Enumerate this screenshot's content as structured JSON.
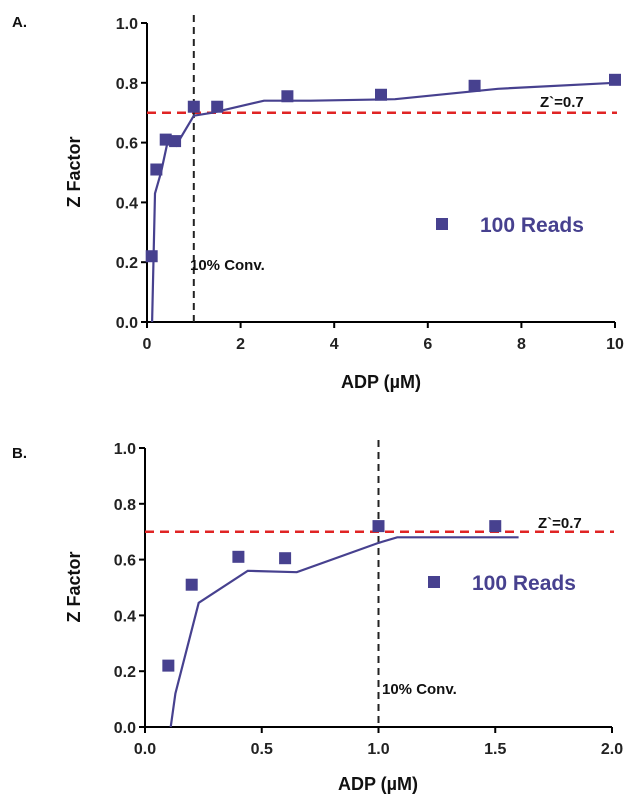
{
  "colors": {
    "series": "#47418f",
    "threshold": "#e02424",
    "vline": "#222222",
    "axis": "#000000"
  },
  "chart_data": [
    {
      "type": "scatter",
      "panel_label": "A.",
      "xlabel": "ADP (µM)",
      "ylabel": "Z Factor",
      "xlim": [
        0,
        10
      ],
      "ylim": [
        0,
        1.0
      ],
      "xticks": [
        "0",
        "2",
        "4",
        "6",
        "8",
        "10"
      ],
      "yticks": [
        "0.0",
        "0.2",
        "0.4",
        "0.6",
        "0.8",
        "1.0"
      ],
      "series": [
        {
          "name": "100 Reads",
          "points": {
            "x": [
              0.1,
              0.2,
              0.4,
              0.6,
              1.0,
              1.5,
              3.0,
              5.0,
              7.0,
              10.0
            ],
            "y": [
              0.22,
              0.51,
              0.61,
              0.605,
              0.72,
              0.72,
              0.755,
              0.76,
              0.79,
              0.81
            ]
          },
          "fit": {
            "x": [
              0.11,
              0.17,
              0.3,
              0.45,
              0.62,
              1.0,
              1.4,
              2.5,
              3.5,
              5.3,
              7.5,
              10.0
            ],
            "y": [
              0.0,
              0.43,
              0.5,
              0.61,
              0.59,
              0.69,
              0.7,
              0.74,
              0.74,
              0.745,
              0.78,
              0.8
            ]
          }
        }
      ],
      "reference_lines": [
        {
          "orientation": "horizontal",
          "value": 0.7,
          "label": "Z`=0.7",
          "style": "dashed"
        },
        {
          "orientation": "vertical",
          "value": 1.0,
          "label": "10% Conv.",
          "style": "dashed"
        }
      ],
      "legend": {
        "entries": [
          "100 Reads"
        ],
        "position": "center-right"
      }
    },
    {
      "type": "scatter",
      "panel_label": "B.",
      "xlabel": "ADP (µM)",
      "ylabel": "Z Factor",
      "xlim": [
        0,
        2.0
      ],
      "ylim": [
        0,
        1.0
      ],
      "xticks": [
        "0.0",
        "0.5",
        "1.0",
        "1.5",
        "2.0"
      ],
      "yticks": [
        "0.0",
        "0.2",
        "0.4",
        "0.6",
        "0.8",
        "1.0"
      ],
      "series": [
        {
          "name": "100 Reads",
          "points": {
            "x": [
              0.1,
              0.2,
              0.4,
              0.6,
              1.0,
              1.5
            ],
            "y": [
              0.22,
              0.51,
              0.61,
              0.605,
              0.72,
              0.72
            ]
          },
          "fit": {
            "x": [
              0.11,
              0.13,
              0.23,
              0.44,
              0.65,
              1.0,
              1.08,
              1.6
            ],
            "y": [
              0.0,
              0.12,
              0.445,
              0.56,
              0.555,
              0.66,
              0.68,
              0.68
            ]
          }
        }
      ],
      "reference_lines": [
        {
          "orientation": "horizontal",
          "value": 0.7,
          "label": "Z`=0.7",
          "style": "dashed"
        },
        {
          "orientation": "vertical",
          "value": 1.0,
          "label": "10% Conv.",
          "style": "dashed"
        }
      ],
      "legend": {
        "entries": [
          "100 Reads"
        ],
        "position": "center-right"
      }
    }
  ]
}
